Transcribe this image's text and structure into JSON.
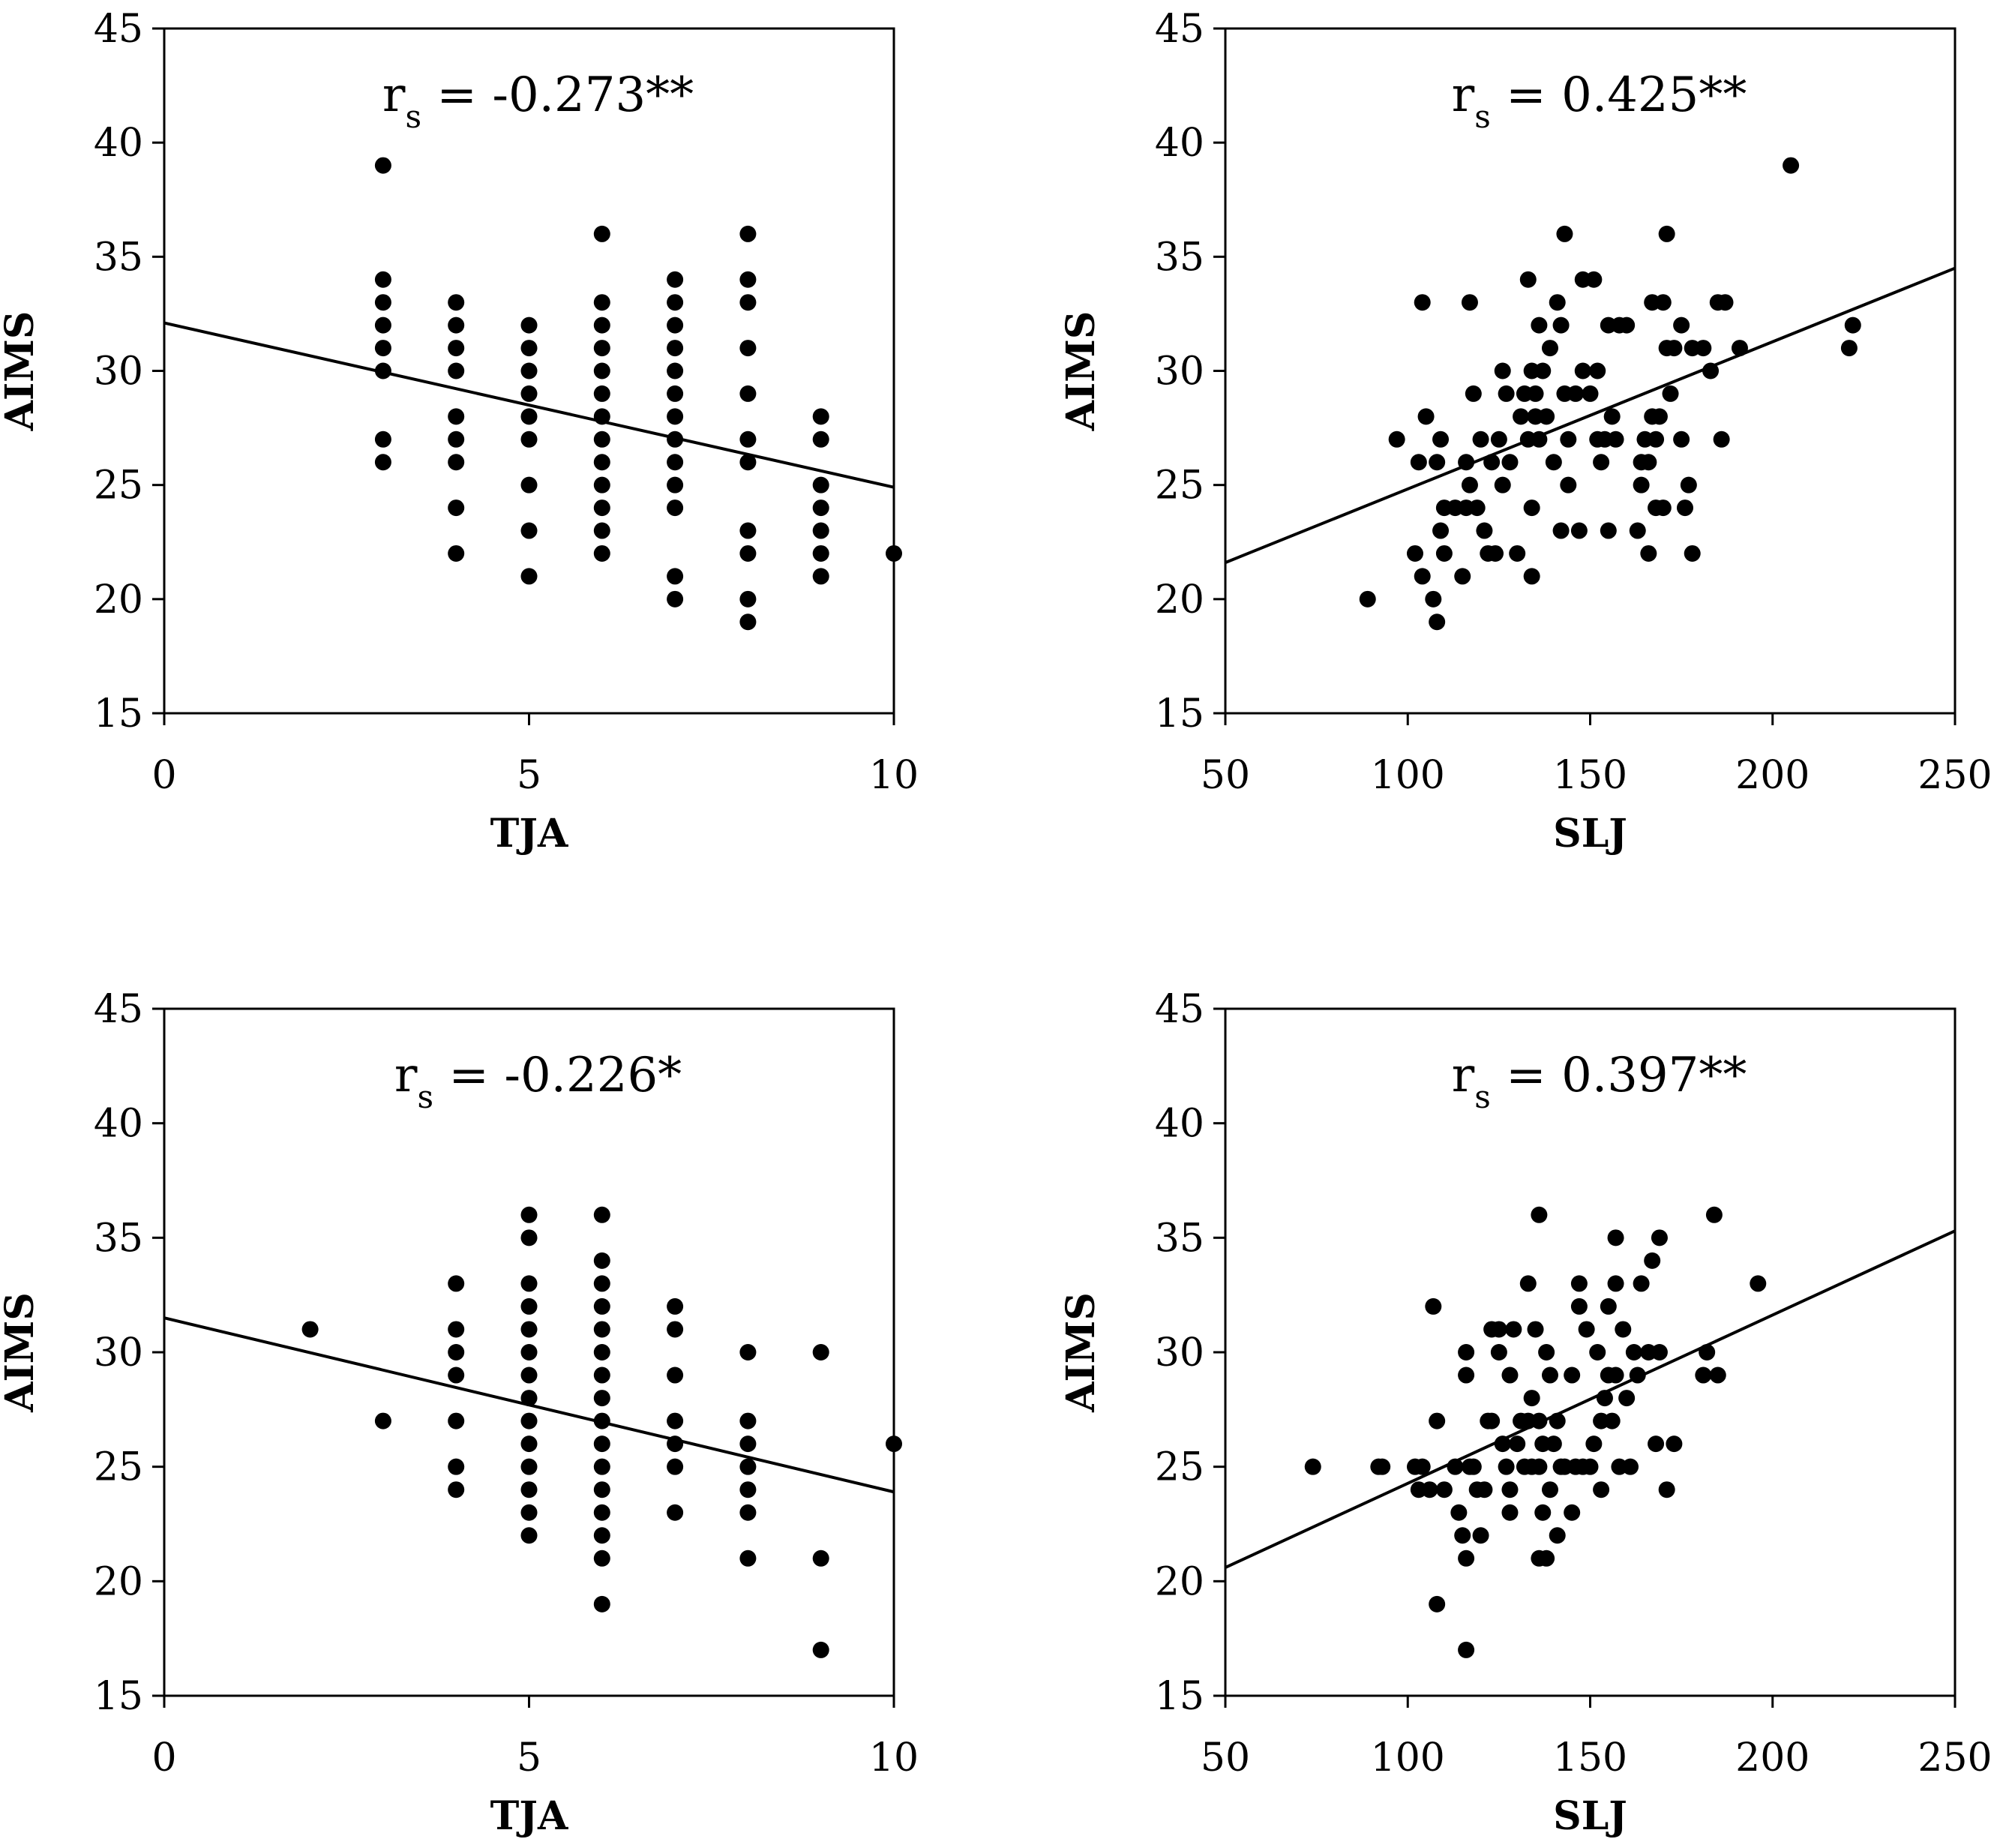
{
  "chart_data": [
    {
      "type": "scatter",
      "panel": "top-left",
      "xlabel": "TJA",
      "ylabel": "AIMS",
      "xlim": [
        0,
        10
      ],
      "ylim": [
        15,
        45
      ],
      "xticks": [
        0,
        5,
        10
      ],
      "yticks": [
        15,
        20,
        25,
        30,
        35,
        40,
        45
      ],
      "annotation": {
        "prefix": "r",
        "sub": "s",
        "text": " = -0.273**"
      },
      "trendline": {
        "x": [
          0,
          10
        ],
        "y": [
          32.1,
          24.9
        ]
      },
      "points": [
        [
          3,
          39
        ],
        [
          3,
          34
        ],
        [
          3,
          33
        ],
        [
          3,
          32
        ],
        [
          3,
          31
        ],
        [
          3,
          30
        ],
        [
          3,
          27
        ],
        [
          3,
          26
        ],
        [
          4,
          33
        ],
        [
          4,
          32
        ],
        [
          4,
          31
        ],
        [
          4,
          30
        ],
        [
          4,
          28
        ],
        [
          4,
          27
        ],
        [
          4,
          26
        ],
        [
          4,
          24
        ],
        [
          4,
          22
        ],
        [
          5,
          32
        ],
        [
          5,
          31
        ],
        [
          5,
          30
        ],
        [
          5,
          29
        ],
        [
          5,
          28
        ],
        [
          5,
          27
        ],
        [
          5,
          25
        ],
        [
          5,
          23
        ],
        [
          5,
          21
        ],
        [
          6,
          36
        ],
        [
          6,
          33
        ],
        [
          6,
          32
        ],
        [
          6,
          31
        ],
        [
          6,
          30
        ],
        [
          6,
          29
        ],
        [
          6,
          28
        ],
        [
          6,
          27
        ],
        [
          6,
          26
        ],
        [
          6,
          25
        ],
        [
          6,
          24
        ],
        [
          6,
          23
        ],
        [
          6,
          22
        ],
        [
          7,
          34
        ],
        [
          7,
          33
        ],
        [
          7,
          32
        ],
        [
          7,
          31
        ],
        [
          7,
          30
        ],
        [
          7,
          29
        ],
        [
          7,
          28
        ],
        [
          7,
          27
        ],
        [
          7,
          26
        ],
        [
          7,
          25
        ],
        [
          7,
          24
        ],
        [
          7,
          21
        ],
        [
          7,
          20
        ],
        [
          8,
          36
        ],
        [
          8,
          34
        ],
        [
          8,
          33
        ],
        [
          8,
          31
        ],
        [
          8,
          29
        ],
        [
          8,
          27
        ],
        [
          8,
          26
        ],
        [
          8,
          23
        ],
        [
          8,
          22
        ],
        [
          8,
          20
        ],
        [
          8,
          19
        ],
        [
          9,
          28
        ],
        [
          9,
          27
        ],
        [
          9,
          25
        ],
        [
          9,
          24
        ],
        [
          9,
          23
        ],
        [
          9,
          22
        ],
        [
          9,
          21
        ],
        [
          10,
          22
        ]
      ]
    },
    {
      "type": "scatter",
      "panel": "top-right",
      "xlabel": "SLJ",
      "ylabel": "AIMS",
      "xlim": [
        50,
        250
      ],
      "ylim": [
        15,
        45
      ],
      "xticks": [
        50,
        100,
        150,
        200,
        250
      ],
      "yticks": [
        15,
        20,
        25,
        30,
        35,
        40,
        45
      ],
      "annotation": {
        "prefix": "r",
        "sub": "s",
        "text": " = 0.425**"
      },
      "trendline": {
        "x": [
          50,
          250
        ],
        "y": [
          21.6,
          34.5
        ]
      },
      "points": [
        [
          89,
          20
        ],
        [
          97,
          27
        ],
        [
          102,
          22
        ],
        [
          103,
          26
        ],
        [
          104,
          33
        ],
        [
          104,
          21
        ],
        [
          105,
          28
        ],
        [
          107,
          20
        ],
        [
          108,
          19
        ],
        [
          108,
          26
        ],
        [
          109,
          23
        ],
        [
          109,
          27
        ],
        [
          110,
          22
        ],
        [
          110,
          24
        ],
        [
          113,
          24
        ],
        [
          115,
          21
        ],
        [
          116,
          26
        ],
        [
          116,
          24
        ],
        [
          117,
          33
        ],
        [
          117,
          25
        ],
        [
          118,
          29
        ],
        [
          119,
          24
        ],
        [
          120,
          27
        ],
        [
          121,
          23
        ],
        [
          122,
          22
        ],
        [
          123,
          26
        ],
        [
          124,
          22
        ],
        [
          125,
          27
        ],
        [
          126,
          30
        ],
        [
          126,
          25
        ],
        [
          127,
          29
        ],
        [
          128,
          26
        ],
        [
          130,
          22
        ],
        [
          131,
          28
        ],
        [
          132,
          29
        ],
        [
          133,
          34
        ],
        [
          133,
          27
        ],
        [
          134,
          30
        ],
        [
          134,
          21
        ],
        [
          134,
          24
        ],
        [
          135,
          28
        ],
        [
          135,
          29
        ],
        [
          136,
          32
        ],
        [
          136,
          27
        ],
        [
          137,
          30
        ],
        [
          138,
          28
        ],
        [
          139,
          31
        ],
        [
          140,
          26
        ],
        [
          141,
          33
        ],
        [
          142,
          23
        ],
        [
          142,
          32
        ],
        [
          143,
          29
        ],
        [
          143,
          36
        ],
        [
          144,
          27
        ],
        [
          144,
          25
        ],
        [
          146,
          29
        ],
        [
          147,
          23
        ],
        [
          148,
          34
        ],
        [
          148,
          30
        ],
        [
          150,
          29
        ],
        [
          151,
          34
        ],
        [
          152,
          27
        ],
        [
          152,
          30
        ],
        [
          153,
          26
        ],
        [
          154,
          27
        ],
        [
          155,
          32
        ],
        [
          155,
          23
        ],
        [
          156,
          28
        ],
        [
          157,
          27
        ],
        [
          158,
          32
        ],
        [
          160,
          32
        ],
        [
          163,
          23
        ],
        [
          164,
          25
        ],
        [
          164,
          26
        ],
        [
          165,
          27
        ],
        [
          166,
          22
        ],
        [
          166,
          26
        ],
        [
          167,
          28
        ],
        [
          167,
          33
        ],
        [
          168,
          24
        ],
        [
          168,
          27
        ],
        [
          169,
          28
        ],
        [
          170,
          33
        ],
        [
          170,
          24
        ],
        [
          171,
          36
        ],
        [
          171,
          31
        ],
        [
          172,
          29
        ],
        [
          173,
          31
        ],
        [
          175,
          32
        ],
        [
          175,
          27
        ],
        [
          176,
          24
        ],
        [
          177,
          25
        ],
        [
          178,
          22
        ],
        [
          178,
          31
        ],
        [
          181,
          31
        ],
        [
          183,
          30
        ],
        [
          185,
          33
        ],
        [
          186,
          27
        ],
        [
          187,
          33
        ],
        [
          191,
          31
        ],
        [
          205,
          39
        ],
        [
          221,
          31
        ],
        [
          222,
          32
        ]
      ]
    },
    {
      "type": "scatter",
      "panel": "bottom-left",
      "xlabel": "TJA",
      "ylabel": "AIMS",
      "xlim": [
        0,
        10
      ],
      "ylim": [
        15,
        45
      ],
      "xticks": [
        0,
        5,
        10
      ],
      "yticks": [
        15,
        20,
        25,
        30,
        35,
        40,
        45
      ],
      "annotation": {
        "prefix": "r",
        "sub": "s",
        "text": " = -0.226*"
      },
      "trendline": {
        "x": [
          0,
          10
        ],
        "y": [
          31.5,
          23.9
        ]
      },
      "points": [
        [
          2,
          31
        ],
        [
          3,
          27
        ],
        [
          4,
          33
        ],
        [
          4,
          31
        ],
        [
          4,
          30
        ],
        [
          4,
          29
        ],
        [
          4,
          27
        ],
        [
          4,
          25
        ],
        [
          4,
          24
        ],
        [
          5,
          36
        ],
        [
          5,
          35
        ],
        [
          5,
          33
        ],
        [
          5,
          32
        ],
        [
          5,
          31
        ],
        [
          5,
          30
        ],
        [
          5,
          29
        ],
        [
          5,
          28
        ],
        [
          5,
          27
        ],
        [
          5,
          26
        ],
        [
          5,
          25
        ],
        [
          5,
          24
        ],
        [
          5,
          23
        ],
        [
          5,
          22
        ],
        [
          6,
          36
        ],
        [
          6,
          34
        ],
        [
          6,
          33
        ],
        [
          6,
          32
        ],
        [
          6,
          31
        ],
        [
          6,
          30
        ],
        [
          6,
          29
        ],
        [
          6,
          28
        ],
        [
          6,
          27
        ],
        [
          6,
          26
        ],
        [
          6,
          25
        ],
        [
          6,
          24
        ],
        [
          6,
          23
        ],
        [
          6,
          22
        ],
        [
          6,
          21
        ],
        [
          6,
          19
        ],
        [
          7,
          32
        ],
        [
          7,
          31
        ],
        [
          7,
          29
        ],
        [
          7,
          27
        ],
        [
          7,
          26
        ],
        [
          7,
          25
        ],
        [
          7,
          23
        ],
        [
          8,
          30
        ],
        [
          8,
          27
        ],
        [
          8,
          26
        ],
        [
          8,
          25
        ],
        [
          8,
          24
        ],
        [
          8,
          23
        ],
        [
          8,
          21
        ],
        [
          9,
          30
        ],
        [
          9,
          21
        ],
        [
          9,
          17
        ],
        [
          10,
          26
        ]
      ]
    },
    {
      "type": "scatter",
      "panel": "bottom-right",
      "xlabel": "SLJ",
      "ylabel": "AIMS",
      "xlim": [
        50,
        250
      ],
      "ylim": [
        15,
        45
      ],
      "xticks": [
        50,
        100,
        150,
        200,
        250
      ],
      "yticks": [
        15,
        20,
        25,
        30,
        35,
        40,
        45
      ],
      "annotation": {
        "prefix": "r",
        "sub": "s",
        "text": " = 0.397**"
      },
      "trendline": {
        "x": [
          50,
          250
        ],
        "y": [
          20.6,
          35.3
        ]
      },
      "points": [
        [
          74,
          25
        ],
        [
          92,
          25
        ],
        [
          93,
          25
        ],
        [
          102,
          25
        ],
        [
          103,
          24
        ],
        [
          104,
          25
        ],
        [
          106,
          24
        ],
        [
          107,
          32
        ],
        [
          108,
          19
        ],
        [
          108,
          27
        ],
        [
          110,
          24
        ],
        [
          113,
          25
        ],
        [
          114,
          23
        ],
        [
          115,
          22
        ],
        [
          116,
          17
        ],
        [
          116,
          21
        ],
        [
          116,
          29
        ],
        [
          116,
          30
        ],
        [
          117,
          25
        ],
        [
          118,
          25
        ],
        [
          119,
          24
        ],
        [
          120,
          22
        ],
        [
          121,
          24
        ],
        [
          122,
          27
        ],
        [
          123,
          31
        ],
        [
          123,
          27
        ],
        [
          125,
          30
        ],
        [
          125,
          31
        ],
        [
          126,
          26
        ],
        [
          127,
          25
        ],
        [
          128,
          29
        ],
        [
          128,
          24
        ],
        [
          128,
          23
        ],
        [
          129,
          31
        ],
        [
          130,
          26
        ],
        [
          131,
          27
        ],
        [
          132,
          25
        ],
        [
          133,
          33
        ],
        [
          133,
          27
        ],
        [
          134,
          28
        ],
        [
          134,
          25
        ],
        [
          135,
          31
        ],
        [
          136,
          36
        ],
        [
          136,
          21
        ],
        [
          136,
          25
        ],
        [
          136,
          27
        ],
        [
          137,
          26
        ],
        [
          137,
          23
        ],
        [
          138,
          30
        ],
        [
          138,
          21
        ],
        [
          139,
          24
        ],
        [
          139,
          29
        ],
        [
          140,
          26
        ],
        [
          141,
          27
        ],
        [
          141,
          22
        ],
        [
          142,
          25
        ],
        [
          143,
          25
        ],
        [
          145,
          29
        ],
        [
          145,
          23
        ],
        [
          146,
          25
        ],
        [
          147,
          33
        ],
        [
          147,
          32
        ],
        [
          148,
          25
        ],
        [
          149,
          31
        ],
        [
          150,
          25
        ],
        [
          151,
          26
        ],
        [
          152,
          30
        ],
        [
          153,
          27
        ],
        [
          153,
          24
        ],
        [
          154,
          28
        ],
        [
          155,
          29
        ],
        [
          155,
          32
        ],
        [
          156,
          27
        ],
        [
          157,
          33
        ],
        [
          157,
          29
        ],
        [
          157,
          35
        ],
        [
          158,
          25
        ],
        [
          159,
          31
        ],
        [
          160,
          28
        ],
        [
          161,
          25
        ],
        [
          162,
          30
        ],
        [
          163,
          29
        ],
        [
          164,
          33
        ],
        [
          166,
          30
        ],
        [
          167,
          34
        ],
        [
          168,
          26
        ],
        [
          169,
          35
        ],
        [
          169,
          30
        ],
        [
          171,
          24
        ],
        [
          173,
          26
        ],
        [
          181,
          29
        ],
        [
          182,
          30
        ],
        [
          184,
          36
        ],
        [
          185,
          29
        ],
        [
          196,
          33
        ]
      ]
    }
  ]
}
